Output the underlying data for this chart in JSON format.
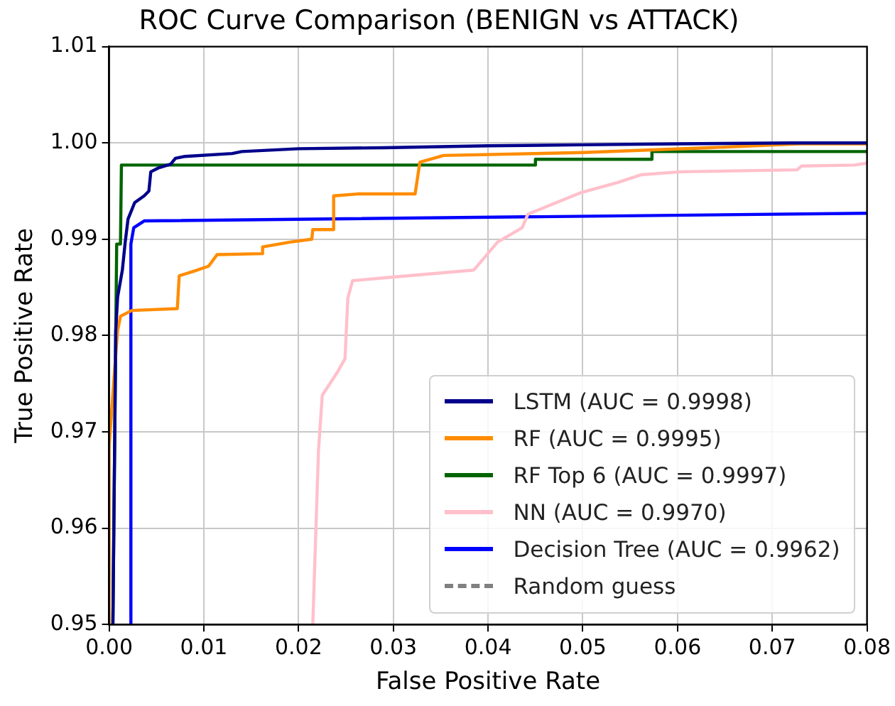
{
  "chart_data": {
    "type": "line",
    "title": "ROC Curve Comparison (BENIGN vs ATTACK)",
    "xlabel": "False Positive Rate",
    "ylabel": "True Positive Rate",
    "xlim": [
      0,
      0.08
    ],
    "ylim": [
      0.95,
      1.01
    ],
    "xticks": [
      {
        "value": 0,
        "label": "0.00"
      },
      {
        "value": 0.01,
        "label": "0.01"
      },
      {
        "value": 0.02,
        "label": "0.02"
      },
      {
        "value": 0.03,
        "label": "0.03"
      },
      {
        "value": 0.04,
        "label": "0.04"
      },
      {
        "value": 0.05,
        "label": "0.05"
      },
      {
        "value": 0.06,
        "label": "0.06"
      },
      {
        "value": 0.07,
        "label": "0.07"
      },
      {
        "value": 0.08,
        "label": "0.08"
      }
    ],
    "yticks": [
      0.95,
      0.96,
      0.97,
      0.98,
      0.99,
      {
        "value": 1,
        "label": "1.00"
      },
      1.01
    ],
    "grid": true,
    "legend": "bottom right",
    "series": [
      {
        "name": "LSTM (AUC = 0.9998)",
        "color": "#00008b",
        "x": [
          0.0004,
          0.0007,
          0.0009,
          0.0014,
          0.0017,
          0.002,
          0.0027,
          0.0037,
          0.0042,
          0.0044,
          0.0052,
          0.0065,
          0.007,
          0.008,
          0.013,
          0.014,
          0.02,
          0.029,
          0.04,
          0.05,
          0.06,
          0.072,
          0.08
        ],
        "values": [
          0.95,
          0.9805,
          0.984,
          0.9868,
          0.9897,
          0.9921,
          0.9938,
          0.9945,
          0.995,
          0.997,
          0.9974,
          0.9978,
          0.9984,
          0.9986,
          0.9989,
          0.9991,
          0.9994,
          0.9995,
          0.9997,
          0.9998,
          0.9999,
          1.0,
          1.0
        ]
      },
      {
        "name": "RF (AUC = 0.9995)",
        "color": "#ff8c00",
        "x": [
          0,
          0,
          0.0007,
          0.0009,
          0.0012,
          0.0024,
          0.0072,
          0.0074,
          0.009,
          0.0105,
          0.0114,
          0.0161,
          0.0162,
          0.0191,
          0.0214,
          0.0215,
          0.0236,
          0.0237,
          0.0262,
          0.0323,
          0.0328,
          0.0353,
          0.05,
          0.0633,
          0.0727,
          0.08
        ],
        "values": [
          0.95,
          0.9685,
          0.978,
          0.9805,
          0.982,
          0.9826,
          0.9828,
          0.9862,
          0.9867,
          0.9872,
          0.9884,
          0.9885,
          0.9892,
          0.9897,
          0.99,
          0.991,
          0.991,
          0.9945,
          0.9947,
          0.9947,
          0.998,
          0.9987,
          0.999,
          0.9995,
          0.9999,
          0.9999
        ]
      },
      {
        "name": "RF Top 6 (AUC = 0.9997)",
        "color": "#006400",
        "x": [
          0.0004,
          0.0008,
          0.0012,
          0.0013,
          0.045,
          0.045,
          0.0573,
          0.0573,
          0.08
        ],
        "values": [
          0.95,
          0.9895,
          0.9895,
          0.9977,
          0.9977,
          0.9983,
          0.9983,
          0.9991,
          0.9991
        ]
      },
      {
        "name": "NN (AUC = 0.9970)",
        "color": "#ffc0cb",
        "x": [
          0.0215,
          0.0221,
          0.0225,
          0.0241,
          0.0249,
          0.0252,
          0.0257,
          0.0292,
          0.0385,
          0.041,
          0.0436,
          0.0442,
          0.0497,
          0.0537,
          0.0562,
          0.0603,
          0.0726,
          0.0731,
          0.0787,
          0.08
        ],
        "values": [
          0.95,
          0.968,
          0.9738,
          0.9762,
          0.9776,
          0.9839,
          0.9857,
          0.986,
          0.9868,
          0.9897,
          0.9912,
          0.9926,
          0.9948,
          0.9959,
          0.9967,
          0.997,
          0.9972,
          0.9976,
          0.9977,
          0.9979
        ]
      },
      {
        "name": "Decision Tree (AUC = 0.9962)",
        "color": "#0000ff",
        "x": [
          0.0023,
          0.0023,
          0.0026,
          0.0037,
          0.08
        ],
        "values": [
          0.95,
          0.9895,
          0.9912,
          0.9919,
          0.9927
        ]
      },
      {
        "name": "Random guess",
        "color": "#808080",
        "line_style": "dashed"
      }
    ]
  }
}
